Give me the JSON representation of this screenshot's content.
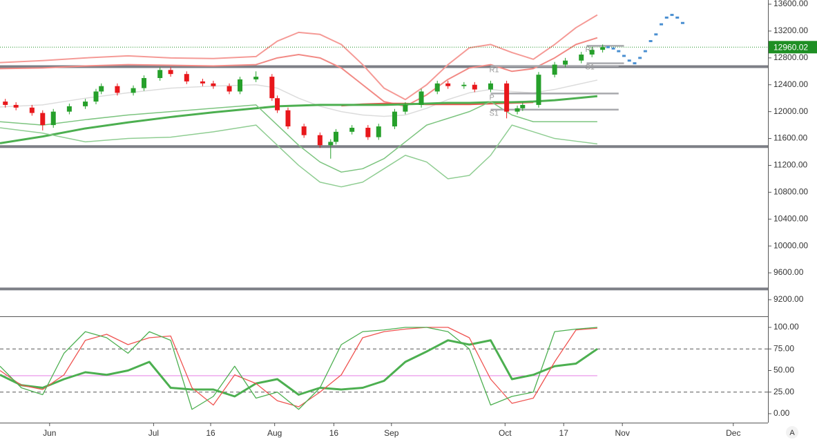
{
  "chart_data": [
    {
      "type": "candlestick",
      "xlim": [
        0,
        144
      ],
      "ylim": [
        8953,
        13662
      ],
      "xticks": [
        {
          "value": 9.3,
          "label": "Jun"
        },
        {
          "value": 28.8,
          "label": "Jul"
        },
        {
          "value": 39.5,
          "label": "16"
        },
        {
          "value": 51.5,
          "label": "Aug"
        },
        {
          "value": 62.6,
          "label": "16"
        },
        {
          "value": 73.4,
          "label": "Sep"
        },
        {
          "value": 94.7,
          "label": "Oct"
        },
        {
          "value": 105.7,
          "label": "17"
        },
        {
          "value": 116.7,
          "label": "Nov"
        },
        {
          "value": 137.5,
          "label": "Dec"
        }
      ],
      "yticks": [
        {
          "value": 9200,
          "label": "9200.00"
        },
        {
          "value": 9600,
          "label": "9600.00"
        },
        {
          "value": 10000,
          "label": "10000.00"
        },
        {
          "value": 10400,
          "label": "10400.00"
        },
        {
          "value": 10800,
          "label": "10800.00"
        },
        {
          "value": 11200,
          "label": "11200.00"
        },
        {
          "value": 11600,
          "label": "11600.00"
        },
        {
          "value": 12000,
          "label": "12000.00"
        },
        {
          "value": 12400,
          "label": "12400.00"
        },
        {
          "value": 12800,
          "label": "12800.00"
        },
        {
          "value": 13200,
          "label": "13200.00"
        },
        {
          "value": 13600,
          "label": "13600.00"
        }
      ],
      "up_color": "#26a02b",
      "down_color": "#e8171b",
      "x": [
        1,
        3,
        6,
        8,
        10,
        13,
        16,
        18,
        19,
        22,
        25,
        27,
        30,
        32,
        35,
        38,
        40,
        43,
        45,
        48,
        51,
        52,
        54,
        57,
        60,
        62,
        63,
        66,
        69,
        71,
        74,
        76,
        79,
        82,
        84,
        87,
        89,
        92,
        95,
        97,
        98,
        101,
        104,
        106,
        109,
        111,
        113
      ],
      "open": [
        12150,
        12100,
        12060,
        11980,
        11800,
        12000,
        12080,
        12150,
        12300,
        12380,
        12280,
        12350,
        12500,
        12620,
        12560,
        12450,
        12420,
        12380,
        12300,
        12480,
        12520,
        12200,
        12020,
        11780,
        11650,
        11500,
        11550,
        11700,
        11760,
        11620,
        11780,
        12000,
        12100,
        12300,
        12420,
        12380,
        12400,
        12330,
        12420,
        12000,
        12050,
        12100,
        12550,
        12700,
        12760,
        12850,
        12920
      ],
      "high": [
        12190,
        12140,
        12100,
        12020,
        12040,
        12120,
        12190,
        12340,
        12420,
        12420,
        12390,
        12540,
        12660,
        12660,
        12600,
        12490,
        12460,
        12420,
        12520,
        12600,
        12560,
        12240,
        12060,
        11820,
        11690,
        11590,
        11740,
        11800,
        11800,
        11820,
        12040,
        12140,
        12340,
        12460,
        12460,
        12440,
        12440,
        12460,
        12460,
        12090,
        12140,
        12590,
        12740,
        12800,
        12890,
        12960,
        13000
      ],
      "low": [
        12060,
        12020,
        11940,
        11720,
        11760,
        11960,
        12040,
        12110,
        12260,
        12240,
        12240,
        12310,
        12460,
        12520,
        12410,
        12380,
        12340,
        12260,
        12260,
        12440,
        12160,
        11980,
        11740,
        11610,
        11460,
        11300,
        11510,
        11660,
        11580,
        11580,
        11740,
        11960,
        12060,
        12260,
        12340,
        12340,
        12290,
        12290,
        11900,
        11960,
        12010,
        12060,
        12510,
        12660,
        12720,
        12810,
        12880
      ],
      "close": [
        12100,
        12060,
        11980,
        11800,
        12000,
        12080,
        12150,
        12300,
        12380,
        12280,
        12350,
        12500,
        12620,
        12560,
        12450,
        12420,
        12380,
        12300,
        12480,
        12520,
        12200,
        12020,
        11780,
        11650,
        11500,
        11550,
        11700,
        11760,
        11620,
        11780,
        12000,
        12100,
        12300,
        12420,
        12380,
        12400,
        12330,
        12420,
        12000,
        12050,
        12100,
        12550,
        12700,
        12760,
        12850,
        12920,
        12960
      ],
      "band_x": [
        0,
        8,
        16,
        24,
        32,
        40,
        48,
        52,
        56,
        60,
        64,
        68,
        72,
        76,
        80,
        84,
        88,
        92,
        96,
        100,
        104,
        108,
        112
      ],
      "overlays": [
        {
          "color": "#f59a96",
          "values": [
            12730,
            12760,
            12800,
            12830,
            12800,
            12790,
            12820,
            13050,
            13180,
            13150,
            13000,
            12700,
            12350,
            12180,
            12400,
            12700,
            12950,
            13000,
            12880,
            12780,
            13000,
            13250,
            13440
          ]
        },
        {
          "color": "#f28a85",
          "values": [
            12640,
            12650,
            12680,
            12700,
            12690,
            12680,
            12700,
            12800,
            12850,
            12800,
            12650,
            12400,
            12150,
            12080,
            12250,
            12480,
            12650,
            12700,
            12600,
            12640,
            12800,
            13000,
            13100
          ]
        },
        {
          "color": "#dcdcdc",
          "values": [
            12070,
            12100,
            12200,
            12280,
            12350,
            12380,
            12400,
            12350,
            12200,
            12080,
            12000,
            11950,
            11930,
            11950,
            12050,
            12180,
            12280,
            12330,
            12300,
            12280,
            12330,
            12400,
            12470
          ]
        },
        {
          "color": "#ef5350",
          "values": [
            null,
            null,
            null,
            null,
            null,
            null,
            null,
            null,
            null,
            null,
            12090,
            12110,
            12120,
            12120,
            12110,
            12110,
            12110,
            12120,
            12130,
            12140,
            null,
            null,
            null
          ]
        },
        {
          "color": "#4caf50",
          "values": [
            11530,
            11630,
            11750,
            11840,
            11920,
            11990,
            12050,
            12080,
            12090,
            12100,
            12100,
            12100,
            12100,
            12110,
            12120,
            12130,
            12130,
            12140,
            12140,
            12150,
            12170,
            12200,
            12230
          ]
        },
        {
          "color": "#7cc47f",
          "values": [
            11850,
            11800,
            11880,
            11950,
            12000,
            12050,
            12100,
            11800,
            11500,
            11250,
            11100,
            11150,
            11300,
            11550,
            11800,
            11900,
            12000,
            12150,
            11950,
            11850,
            11850,
            11850,
            11850
          ]
        },
        {
          "color": "#8fcd92",
          "values": [
            11760,
            11680,
            11550,
            11600,
            11620,
            11700,
            11800,
            11500,
            11200,
            10950,
            10880,
            10950,
            11150,
            11350,
            11250,
            11000,
            11050,
            11350,
            11800,
            11700,
            11600,
            11560,
            11520
          ]
        }
      ],
      "levels": [
        12670,
        11480,
        9360
      ],
      "pivots": [
        {
          "label": "R1",
          "value": 12680,
          "x": [
            92,
            116
          ]
        },
        {
          "label": "P",
          "value": 12270,
          "x": [
            92,
            116
          ]
        },
        {
          "label": "S1",
          "value": 12030,
          "x": [
            92,
            116
          ]
        },
        {
          "label": "R1",
          "value": 12980,
          "x": [
            110,
            117
          ]
        },
        {
          "label": "S1",
          "value": 12720,
          "x": [
            110,
            117
          ]
        }
      ],
      "forecast_color": "#4a8fd1",
      "forecast_x": [
        114,
        115,
        116,
        117,
        118,
        119,
        120,
        121,
        122,
        123,
        124,
        125,
        126,
        127,
        128
      ],
      "forecast": [
        12960,
        12940,
        12900,
        12830,
        12760,
        12720,
        12800,
        12900,
        13050,
        13150,
        13300,
        13400,
        13440,
        13400,
        13320
      ],
      "last_price": 12960.02,
      "last_color": "#1e8f24"
    },
    {
      "type": "oscillator",
      "ylim": [
        -10.4,
        112.8
      ],
      "yticks": [
        {
          "value": 0,
          "label": "0.00"
        },
        {
          "value": 25,
          "label": "25.00"
        },
        {
          "value": 50,
          "label": "50.00"
        },
        {
          "value": 75,
          "label": "75.00"
        },
        {
          "value": 100,
          "label": "100.00"
        }
      ],
      "dashed": [
        75,
        25
      ],
      "midline": 44,
      "x": [
        0,
        4,
        8,
        12,
        16,
        20,
        24,
        28,
        32,
        36,
        40,
        44,
        48,
        52,
        56,
        60,
        64,
        68,
        72,
        76,
        80,
        84,
        88,
        92,
        96,
        100,
        104,
        108,
        112
      ],
      "series": [
        {
          "color": "#4caf50",
          "values": [
            45,
            33,
            30,
            40,
            48,
            45,
            50,
            60,
            30,
            28,
            28,
            20,
            35,
            40,
            22,
            30,
            28,
            30,
            38,
            60,
            72,
            85,
            80,
            85,
            40,
            45,
            55,
            58,
            75
          ]
        },
        {
          "color": "#ef5350",
          "values": [
            50,
            33,
            28,
            45,
            85,
            92,
            80,
            88,
            90,
            30,
            10,
            45,
            35,
            15,
            8,
            25,
            45,
            88,
            95,
            98,
            100,
            100,
            88,
            40,
            12,
            18,
            60,
            97,
            99
          ]
        },
        {
          "color": "#4caf50",
          "values": [
            55,
            30,
            22,
            70,
            95,
            88,
            70,
            95,
            85,
            5,
            20,
            55,
            18,
            25,
            5,
            30,
            80,
            95,
            97,
            100,
            100,
            95,
            75,
            10,
            20,
            25,
            95,
            98,
            100
          ]
        }
      ]
    }
  ]
}
